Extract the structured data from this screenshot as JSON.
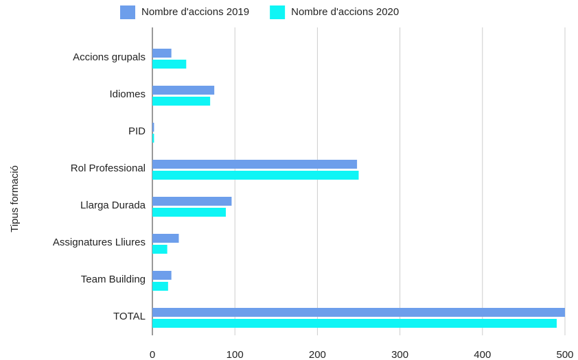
{
  "chart_data": {
    "type": "hbar",
    "y_label": "Tipus formació",
    "categories": [
      "Accions grupals",
      "Idiomes",
      "PID",
      "Rol Professional",
      "Llarga Durada",
      "Assignatures Lliures",
      "Team Building",
      "TOTAL"
    ],
    "series": [
      {
        "name": "Nombre d'accions 2019",
        "color": "#6d9eeb",
        "values": [
          23,
          75,
          2,
          248,
          96,
          32,
          23,
          500
        ]
      },
      {
        "name": "Nombre d'accions 2020",
        "color": "#0ff5f5",
        "values": [
          41,
          70,
          2,
          250,
          89,
          18,
          19,
          490
        ]
      }
    ],
    "xlim": [
      0,
      500
    ],
    "xticks": [
      0,
      100,
      200,
      300,
      400,
      500
    ],
    "grid": true,
    "legend": "top"
  }
}
